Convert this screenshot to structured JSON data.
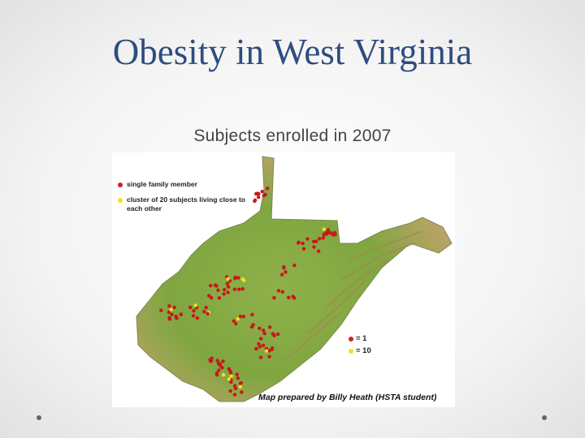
{
  "slide": {
    "title": "Obesity in West Virginia",
    "subtitle": "Subjects enrolled in 2007"
  },
  "map": {
    "legend": [
      {
        "label": "single family member"
      },
      {
        "label": "cluster of 20 subjects living close to each other"
      }
    ],
    "key": [
      {
        "label": "= 1"
      },
      {
        "label": "= 10"
      }
    ],
    "credit": "Map prepared by Billy Heath (HSTA student)"
  }
}
